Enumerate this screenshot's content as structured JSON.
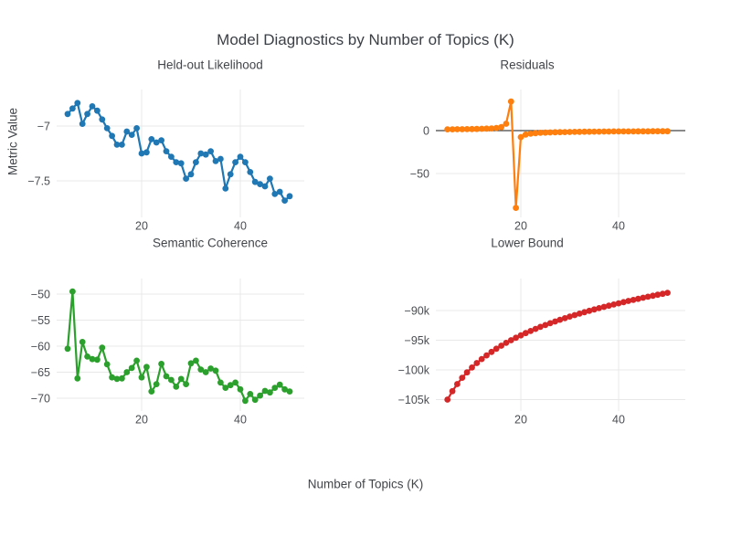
{
  "figure": {
    "title": "Model Diagnostics by Number of Topics (K)",
    "x_axis_title": "Number of Topics (K)",
    "y_axis_title": "Metric Value",
    "background_color": "#ffffff",
    "gridline_color": "#e8e8e8",
    "zeroline_color": "#444444",
    "text_color": "#42454a"
  },
  "chart_data": [
    {
      "type": "line",
      "title": "Held-out Likelihood",
      "color": "#1f77b4",
      "x": [
        5,
        6,
        7,
        8,
        9,
        10,
        11,
        12,
        13,
        14,
        15,
        16,
        17,
        18,
        19,
        20,
        21,
        22,
        23,
        24,
        25,
        26,
        27,
        28,
        29,
        30,
        31,
        32,
        33,
        34,
        35,
        36,
        37,
        38,
        39,
        40,
        41,
        42,
        43,
        44,
        45,
        46,
        47,
        48,
        49,
        50
      ],
      "values": [
        -6.89,
        -6.84,
        -6.79,
        -6.98,
        -6.89,
        -6.82,
        -6.86,
        -6.94,
        -7.02,
        -7.09,
        -7.17,
        -7.17,
        -7.05,
        -7.08,
        -7.02,
        -7.25,
        -7.24,
        -7.12,
        -7.15,
        -7.13,
        -7.23,
        -7.28,
        -7.33,
        -7.34,
        -7.48,
        -7.44,
        -7.33,
        -7.25,
        -7.26,
        -7.23,
        -7.32,
        -7.3,
        -7.57,
        -7.44,
        -7.33,
        -7.28,
        -7.33,
        -7.42,
        -7.51,
        -7.53,
        -7.55,
        -7.48,
        -7.62,
        -7.6,
        -7.68,
        -7.64
      ],
      "xlim": [
        2.78,
        52.96
      ],
      "ylim": [
        -7.833,
        -6.667
      ],
      "xticks": [
        {
          "v": 20,
          "label": "20"
        },
        {
          "v": 40,
          "label": "40"
        }
      ],
      "yticks": [
        {
          "v": -7,
          "label": "−7"
        },
        {
          "v": -7.5,
          "label": "−7.5"
        }
      ],
      "zeroline": false,
      "grid": true
    },
    {
      "type": "line",
      "title": "Residuals",
      "color": "#ff7f0e",
      "x": [
        5,
        6,
        7,
        8,
        9,
        10,
        11,
        12,
        13,
        14,
        15,
        16,
        17,
        18,
        19,
        20,
        21,
        22,
        23,
        24,
        25,
        26,
        27,
        28,
        29,
        30,
        31,
        32,
        33,
        34,
        35,
        36,
        37,
        38,
        39,
        40,
        41,
        42,
        43,
        44,
        45,
        46,
        47,
        48,
        49,
        50
      ],
      "values": [
        1.5,
        1.5,
        1.6,
        1.6,
        1.7,
        1.8,
        1.9,
        2.1,
        2.3,
        2.6,
        3.1,
        4.0,
        8.0,
        34,
        -90,
        -7.5,
        -4.6,
        -3.6,
        -3.0,
        -2.6,
        -2.3,
        -2.1,
        -1.9,
        -1.8,
        -1.7,
        -1.6,
        -1.5,
        -1.4,
        -1.3,
        -1.3,
        -1.2,
        -1.2,
        -1.1,
        -1.1,
        -1.0,
        -1.0,
        -0.9,
        -0.9,
        -0.9,
        -0.8,
        -0.8,
        -0.8,
        -0.7,
        -0.7,
        -0.7,
        -0.7
      ],
      "xlim": [
        2.62,
        53.64
      ],
      "ylim": [
        -101.1,
        47.9
      ],
      "xticks": [
        {
          "v": 20,
          "label": "20"
        },
        {
          "v": 40,
          "label": "40"
        }
      ],
      "yticks": [
        {
          "v": 0,
          "label": "0"
        },
        {
          "v": -50,
          "label": "−50"
        }
      ],
      "zeroline": true,
      "grid": true
    },
    {
      "type": "line",
      "title": "Semantic Coherence",
      "color": "#2ca02c",
      "x": [
        5,
        6,
        7,
        8,
        9,
        10,
        11,
        12,
        13,
        14,
        15,
        16,
        17,
        18,
        19,
        20,
        21,
        22,
        23,
        24,
        25,
        26,
        27,
        28,
        29,
        30,
        31,
        32,
        33,
        34,
        35,
        36,
        37,
        38,
        39,
        40,
        41,
        42,
        43,
        44,
        45,
        46,
        47,
        48,
        49,
        50
      ],
      "values": [
        -60.5,
        -49.5,
        -66.2,
        -59.2,
        -62.0,
        -62.5,
        -62.6,
        -60.3,
        -63.5,
        -66.0,
        -66.3,
        -66.2,
        -65.0,
        -64.2,
        -62.8,
        -66.0,
        -64.0,
        -68.7,
        -67.3,
        -63.4,
        -65.8,
        -66.5,
        -67.8,
        -66.3,
        -67.3,
        -63.3,
        -62.8,
        -64.5,
        -65.0,
        -64.3,
        -64.7,
        -67.0,
        -68.0,
        -67.5,
        -67.0,
        -68.3,
        -70.5,
        -69.2,
        -70.3,
        -69.5,
        -68.6,
        -68.9,
        -68.0,
        -67.4,
        -68.3,
        -68.7
      ],
      "xlim": [
        2.78,
        52.96
      ],
      "ylim": [
        -72.46,
        -47.02
      ],
      "xticks": [
        {
          "v": 20,
          "label": "20"
        },
        {
          "v": 40,
          "label": "40"
        }
      ],
      "yticks": [
        {
          "v": -50,
          "label": "−50"
        },
        {
          "v": -55,
          "label": "−55"
        },
        {
          "v": -60,
          "label": "−60"
        },
        {
          "v": -65,
          "label": "−65"
        },
        {
          "v": -70,
          "label": "−70"
        }
      ],
      "zeroline": false,
      "grid": true
    },
    {
      "type": "line",
      "title": "Lower Bound",
      "color": "#d62728",
      "x": [
        5,
        6,
        7,
        8,
        9,
        10,
        11,
        12,
        13,
        14,
        15,
        16,
        17,
        18,
        19,
        20,
        21,
        22,
        23,
        24,
        25,
        26,
        27,
        28,
        29,
        30,
        31,
        32,
        33,
        34,
        35,
        36,
        37,
        38,
        39,
        40,
        41,
        42,
        43,
        44,
        45,
        46,
        47,
        48,
        49,
        50
      ],
      "values": [
        -105000,
        -103580,
        -102380,
        -101330,
        -100420,
        -99600,
        -98850,
        -98170,
        -97550,
        -96970,
        -96430,
        -95930,
        -95450,
        -95000,
        -94580,
        -94180,
        -93800,
        -93440,
        -93090,
        -92760,
        -92440,
        -92140,
        -91840,
        -91560,
        -91290,
        -91020,
        -90770,
        -90520,
        -90280,
        -90050,
        -89820,
        -89600,
        -89390,
        -89180,
        -88980,
        -88780,
        -88580,
        -88390,
        -88210,
        -88030,
        -87850,
        -87680,
        -87510,
        -87340,
        -87180,
        -87020
      ],
      "xlim": [
        2.62,
        53.64
      ],
      "ylim": [
        -106923,
        -84615
      ],
      "xticks": [
        {
          "v": 20,
          "label": "20"
        },
        {
          "v": 40,
          "label": "40"
        }
      ],
      "yticks": [
        {
          "v": -90000,
          "label": "−90k"
        },
        {
          "v": -95000,
          "label": "−95k"
        },
        {
          "v": -100000,
          "label": "−100k"
        },
        {
          "v": -105000,
          "label": "−105k"
        }
      ],
      "zeroline": false,
      "grid": true
    }
  ]
}
